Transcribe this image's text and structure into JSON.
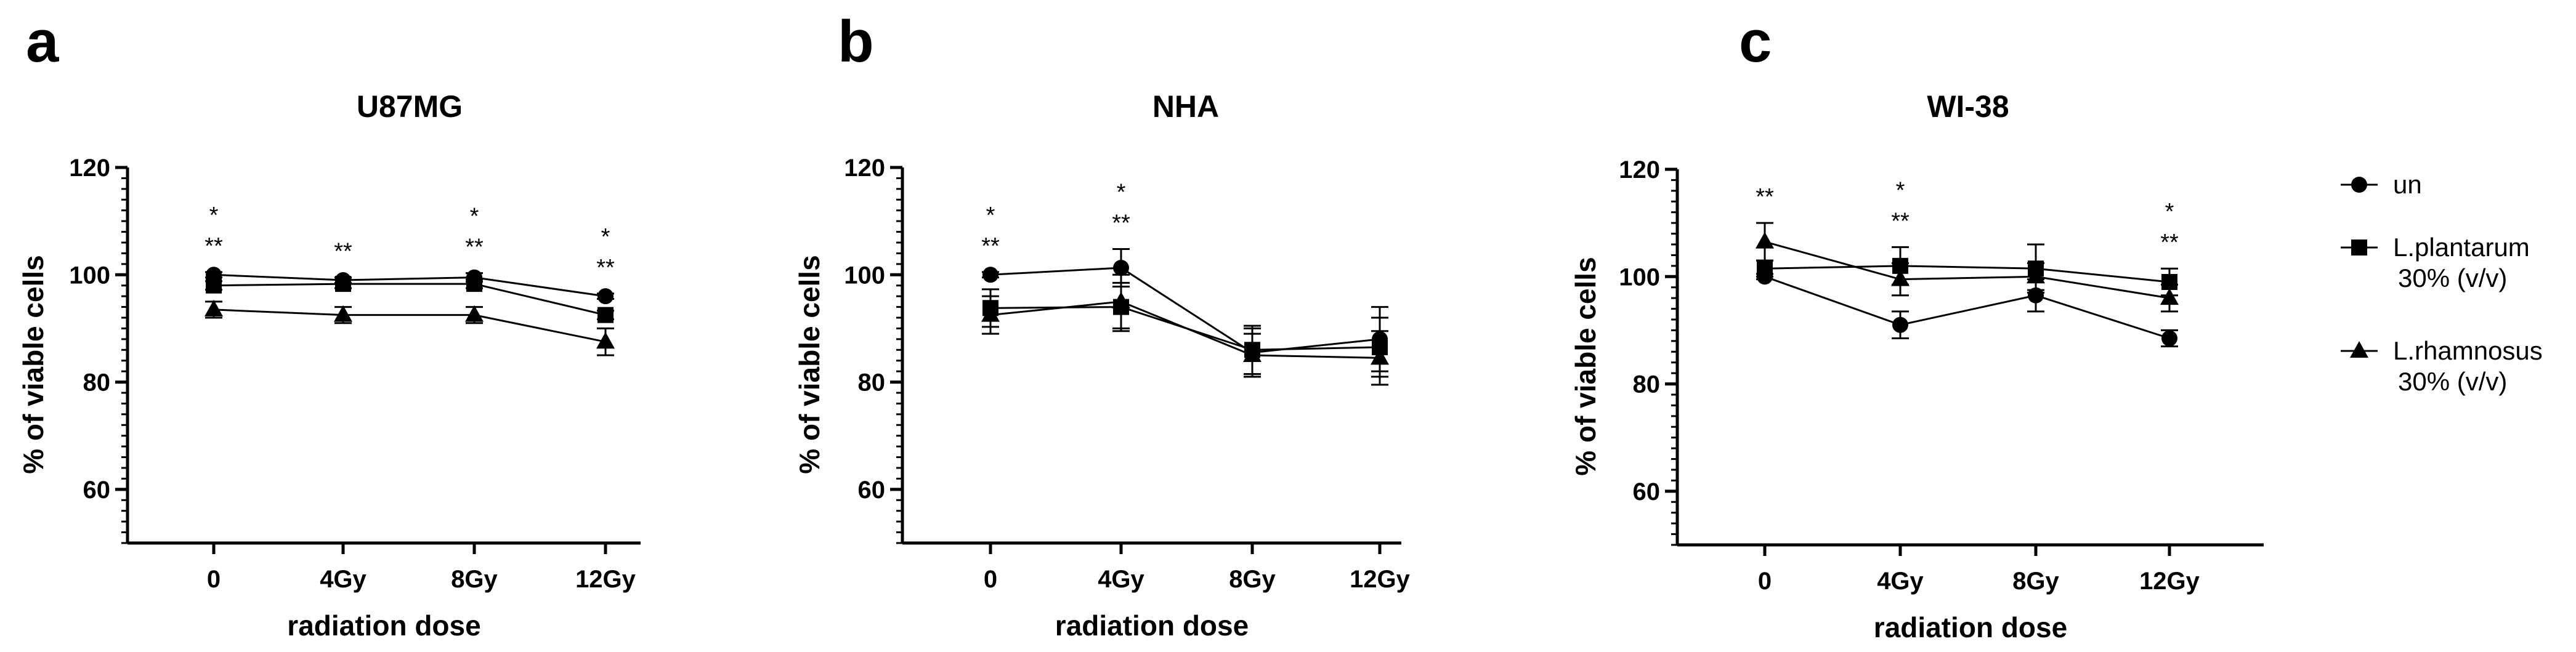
{
  "chart_data": [
    {
      "type": "line",
      "panel": "a",
      "title": "U87MG",
      "xlabel": "radiation dose",
      "ylabel": "% of viable cells",
      "categories": [
        "0",
        "4Gy",
        "8Gy",
        "12Gy"
      ],
      "ylim": [
        50,
        120
      ],
      "yticks": [
        60,
        80,
        100,
        120
      ],
      "series": [
        {
          "name": "un",
          "marker": "circle",
          "values": [
            100,
            99,
            99.5,
            96
          ],
          "errors": [
            0.5,
            0.5,
            0.8,
            0.5
          ]
        },
        {
          "name": "L.plantarum 30% (v/v)",
          "marker": "square",
          "values": [
            98,
            98.3,
            98.3,
            92.5
          ],
          "errors": [
            0.8,
            0.8,
            0.8,
            0.8
          ]
        },
        {
          "name": "L.rhamnosus 30% (v/v)",
          "marker": "triangle",
          "values": [
            93.5,
            92.5,
            92.5,
            87.5
          ],
          "errors": [
            1.5,
            1.5,
            1.5,
            2.5
          ]
        }
      ],
      "annotations": [
        {
          "category": "0",
          "lines": [
            "*",
            "**"
          ]
        },
        {
          "category": "4Gy",
          "lines": [
            "**"
          ]
        },
        {
          "category": "8Gy",
          "lines": [
            "*",
            "**"
          ]
        },
        {
          "category": "12Gy",
          "lines": [
            "*",
            "**"
          ]
        }
      ]
    },
    {
      "type": "line",
      "panel": "b",
      "title": "NHA",
      "xlabel": "radiation dose",
      "ylabel": "% of viable cells",
      "categories": [
        "0",
        "4Gy",
        "8Gy",
        "12Gy"
      ],
      "ylim": [
        50,
        120
      ],
      "yticks": [
        60,
        80,
        100,
        120
      ],
      "series": [
        {
          "name": "un",
          "marker": "circle",
          "values": [
            100,
            101.3,
            85.5,
            88
          ],
          "errors": [
            0.5,
            3.5,
            4.5,
            6
          ]
        },
        {
          "name": "L.plantarum 30% (v/v)",
          "marker": "square",
          "values": [
            93.8,
            94,
            86,
            86.5
          ],
          "errors": [
            3.5,
            4.5,
            4.5,
            5.5
          ]
        },
        {
          "name": "L.rhamnosus 30% (v/v)",
          "marker": "triangle",
          "values": [
            92.5,
            95,
            85,
            84.5
          ],
          "errors": [
            3.5,
            5,
            4,
            5
          ]
        }
      ],
      "annotations": [
        {
          "category": "0",
          "lines": [
            "*",
            "**"
          ]
        },
        {
          "category": "4Gy",
          "lines": [
            "*",
            "**"
          ]
        }
      ]
    },
    {
      "type": "line",
      "panel": "c",
      "title": "WI-38",
      "xlabel": "radiation dose",
      "ylabel": "% of viable cells",
      "categories": [
        "0",
        "4Gy",
        "8Gy",
        "12Gy"
      ],
      "ylim": [
        50,
        120
      ],
      "yticks": [
        60,
        80,
        100,
        120
      ],
      "series": [
        {
          "name": "un",
          "marker": "circle",
          "values": [
            100,
            91,
            96.5,
            88.5
          ],
          "errors": [
            0.5,
            2.5,
            3,
            1.5
          ]
        },
        {
          "name": "L.plantarum 30% (v/v)",
          "marker": "square",
          "values": [
            101.5,
            102,
            101.5,
            99
          ],
          "errors": [
            1.5,
            3.5,
            4.5,
            2.5
          ]
        },
        {
          "name": "L.rhamnosus 30% (v/v)",
          "marker": "triangle",
          "values": [
            106.5,
            99.5,
            100,
            96
          ],
          "errors": [
            3.5,
            3,
            2.5,
            2.5
          ]
        }
      ],
      "annotations": [
        {
          "category": "0",
          "lines": [
            "**"
          ]
        },
        {
          "category": "4Gy",
          "lines": [
            "*",
            "**"
          ]
        },
        {
          "category": "12Gy",
          "lines": [
            "*",
            "**"
          ]
        }
      ]
    }
  ],
  "legend": {
    "items": [
      {
        "marker": "circle",
        "lines": [
          "un"
        ]
      },
      {
        "marker": "square",
        "lines": [
          "L.plantarum",
          "30% (v/v)"
        ]
      },
      {
        "marker": "triangle",
        "lines": [
          "L.rhamnosus",
          "30% (v/v)"
        ]
      }
    ]
  }
}
